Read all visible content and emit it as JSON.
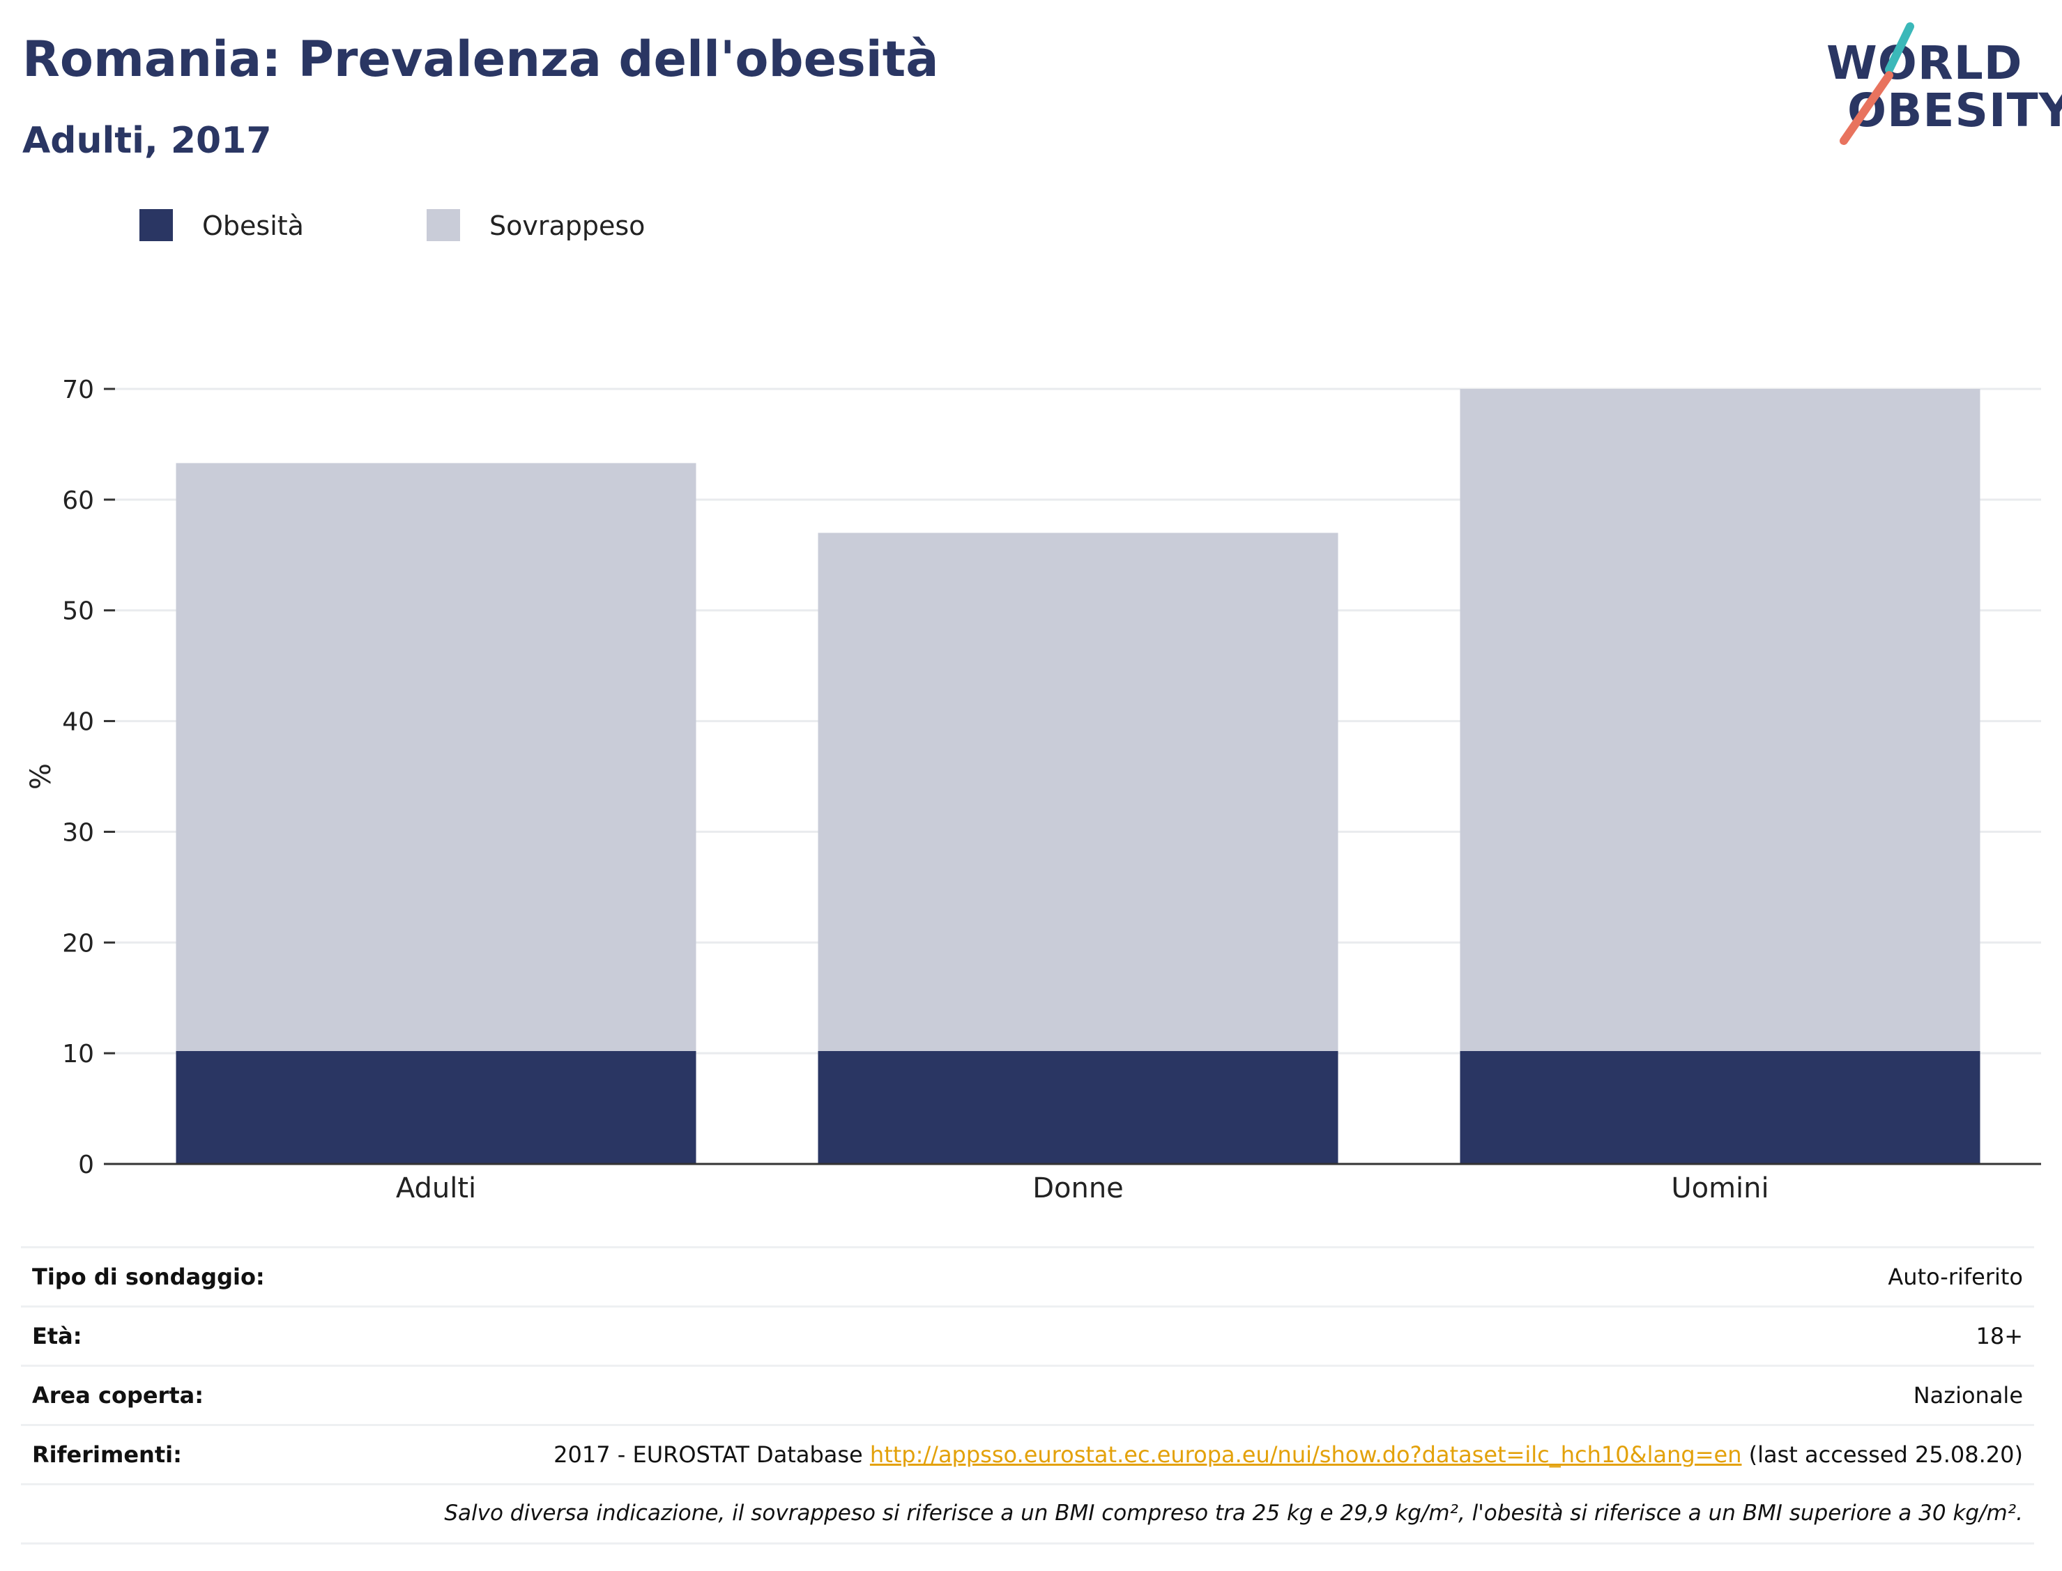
{
  "header": {
    "title": "Romania: Prevalenza dell'obesità",
    "subtitle": "Adulti, 2017"
  },
  "logo": {
    "line1": "WORLD",
    "line2": "OBESITY",
    "colors": {
      "teal": "#3bb8b9",
      "coral": "#e8735e",
      "navy": "#2a3663"
    }
  },
  "chart_data": {
    "type": "bar",
    "stacked": true,
    "categories": [
      "Adulti",
      "Donne",
      "Uomini"
    ],
    "series": [
      {
        "name": "Obesità",
        "color": "#2a3663",
        "values": [
          10.2,
          10.2,
          10.2
        ]
      },
      {
        "name": "Sovrappeso",
        "color": "#c9ccd8",
        "values": [
          53.1,
          46.8,
          59.8
        ]
      }
    ],
    "ylabel": "%",
    "ylim": [
      0,
      70
    ],
    "yticks": [
      0,
      10,
      20,
      30,
      40,
      50,
      60,
      70
    ],
    "grid": true,
    "legend": "top-left"
  },
  "info": {
    "rows": [
      {
        "label": "Tipo di sondaggio:",
        "value": "Auto-riferito"
      },
      {
        "label": "Età:",
        "value": "18+"
      },
      {
        "label": "Area coperta:",
        "value": "Nazionale"
      }
    ],
    "references": {
      "label": "Riferimenti:",
      "prefix": "2017 - EUROSTAT Database",
      "link": "http://appsso.eurostat.ec.europa.eu/nui/show.do?dataset=ilc_hch10&lang=en",
      "suffix": "(last accessed 25.08.20)"
    },
    "note": "Salvo diversa indicazione, il sovrappeso si riferisce a un BMI compreso tra 25 kg e 29,9 kg/m², l'obesità si riferisce a un BMI superiore a 30 kg/m²."
  }
}
